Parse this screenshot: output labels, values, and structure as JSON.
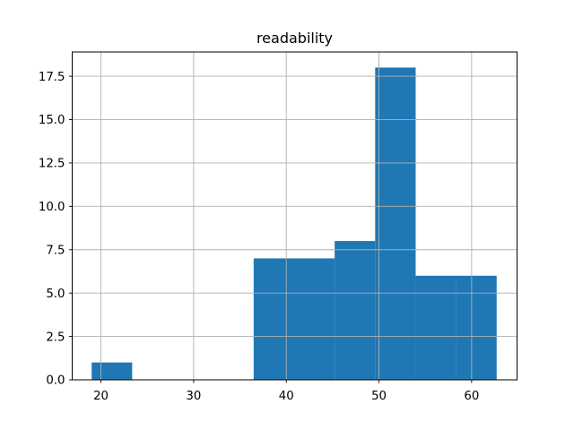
{
  "figure": {
    "background": "#ffffff"
  },
  "chart_data": {
    "type": "histogram",
    "title": "readability",
    "xlabel": "",
    "ylabel": "",
    "bin_edges": [
      19.0,
      23.37,
      27.74,
      32.11,
      36.48,
      40.85,
      45.22,
      49.59,
      53.96,
      58.33,
      62.7
    ],
    "counts": [
      1,
      0,
      0,
      0,
      7,
      7,
      8,
      18,
      6,
      6
    ],
    "xtick_values": [
      20,
      30,
      40,
      50,
      60
    ],
    "xtick_labels": [
      "20",
      "30",
      "40",
      "50",
      "60"
    ],
    "ytick_values": [
      0,
      2.5,
      5,
      7.5,
      10,
      12.5,
      15,
      17.5
    ],
    "ytick_labels": [
      "0.0",
      "2.5",
      "5.0",
      "7.5",
      "10.0",
      "12.5",
      "15.0",
      "17.5"
    ],
    "xlim": [
      16.9,
      64.9
    ],
    "ylim": [
      0,
      18.9
    ],
    "grid": true,
    "grid_on_top_of_bars": true,
    "legend": "none",
    "bar_color": "#1f77b4",
    "grid_color": "#b0b0b0",
    "spine_color": "#000000",
    "text_color": "#000000"
  }
}
